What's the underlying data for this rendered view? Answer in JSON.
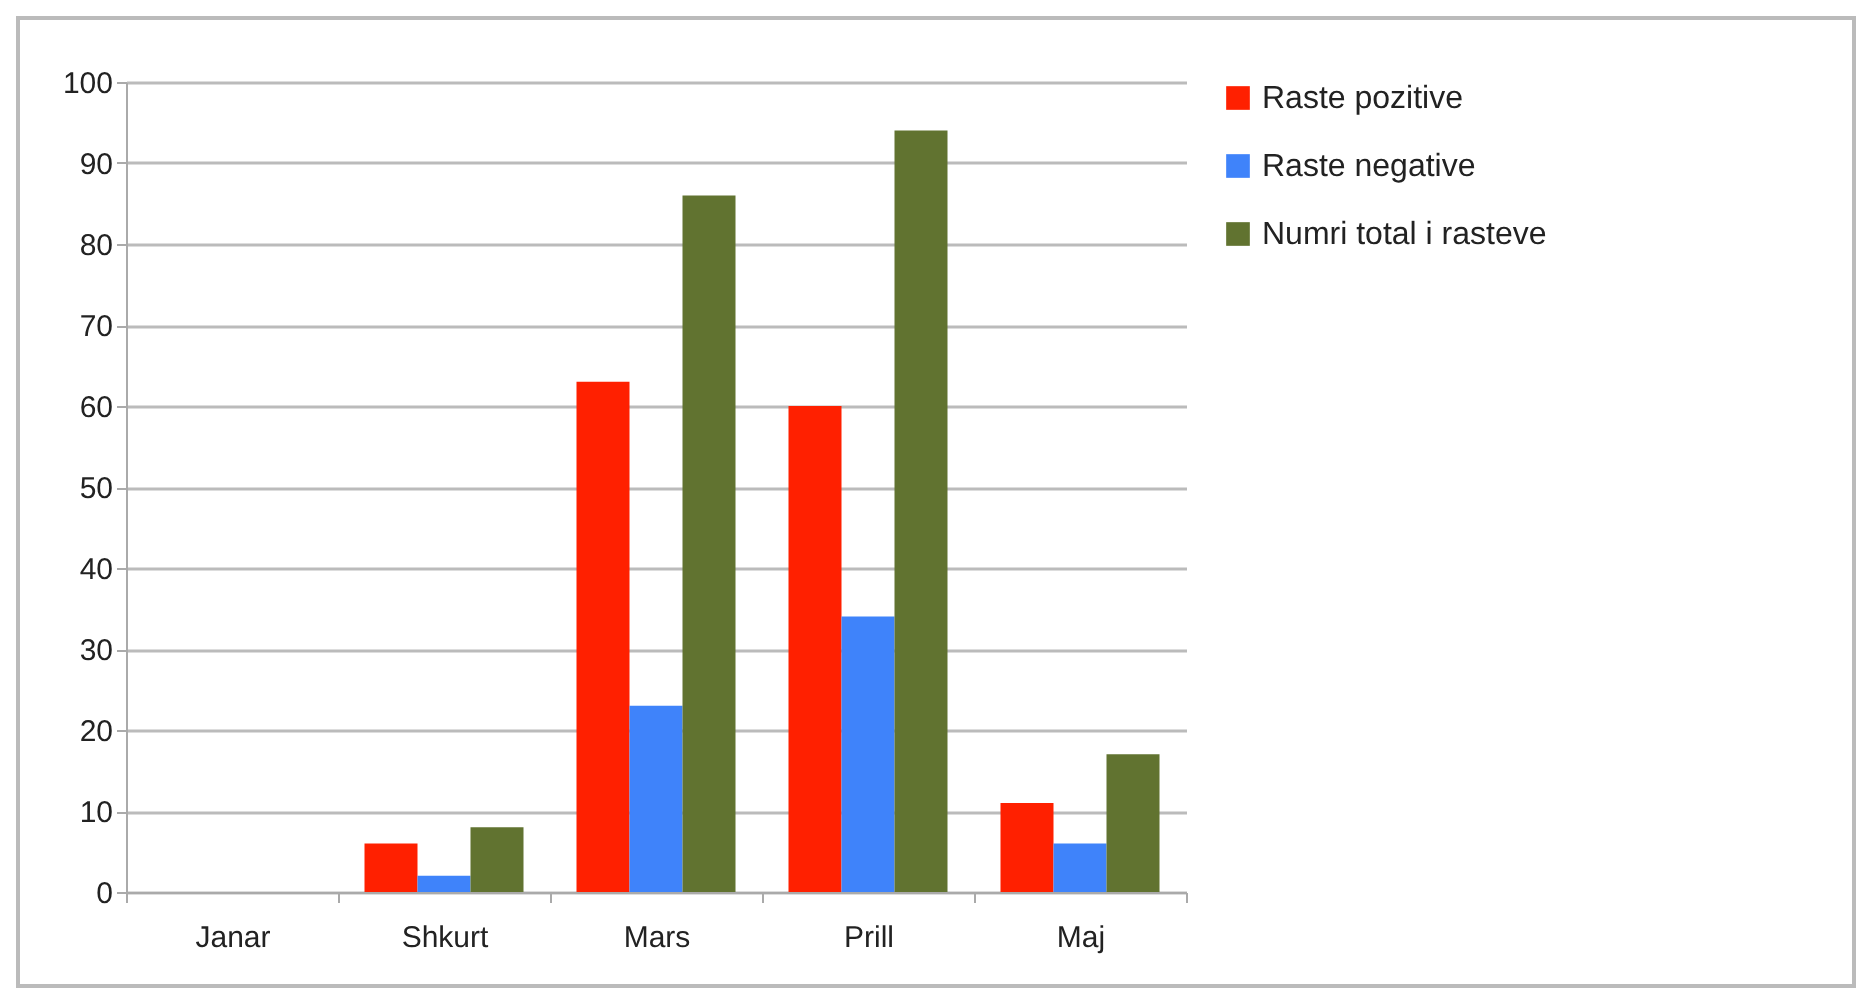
{
  "chart_data": {
    "type": "bar",
    "categories": [
      "Janar",
      "Shkurt",
      "Mars",
      "Prill",
      "Maj"
    ],
    "series": [
      {
        "name": "Raste pozitive",
        "color": "#ff2000",
        "values": [
          0,
          6,
          63,
          60,
          11
        ]
      },
      {
        "name": "Raste negative",
        "color": "#3f83fa",
        "values": [
          0,
          2,
          23,
          34,
          6
        ]
      },
      {
        "name": "Numri total i rasteve",
        "color": "#617330",
        "values": [
          0,
          8,
          86,
          94,
          17
        ]
      }
    ],
    "ylim": [
      0,
      100
    ],
    "yticks": [
      0,
      10,
      20,
      30,
      40,
      50,
      60,
      70,
      80,
      90,
      100
    ],
    "grid": "y",
    "legend": "right"
  }
}
